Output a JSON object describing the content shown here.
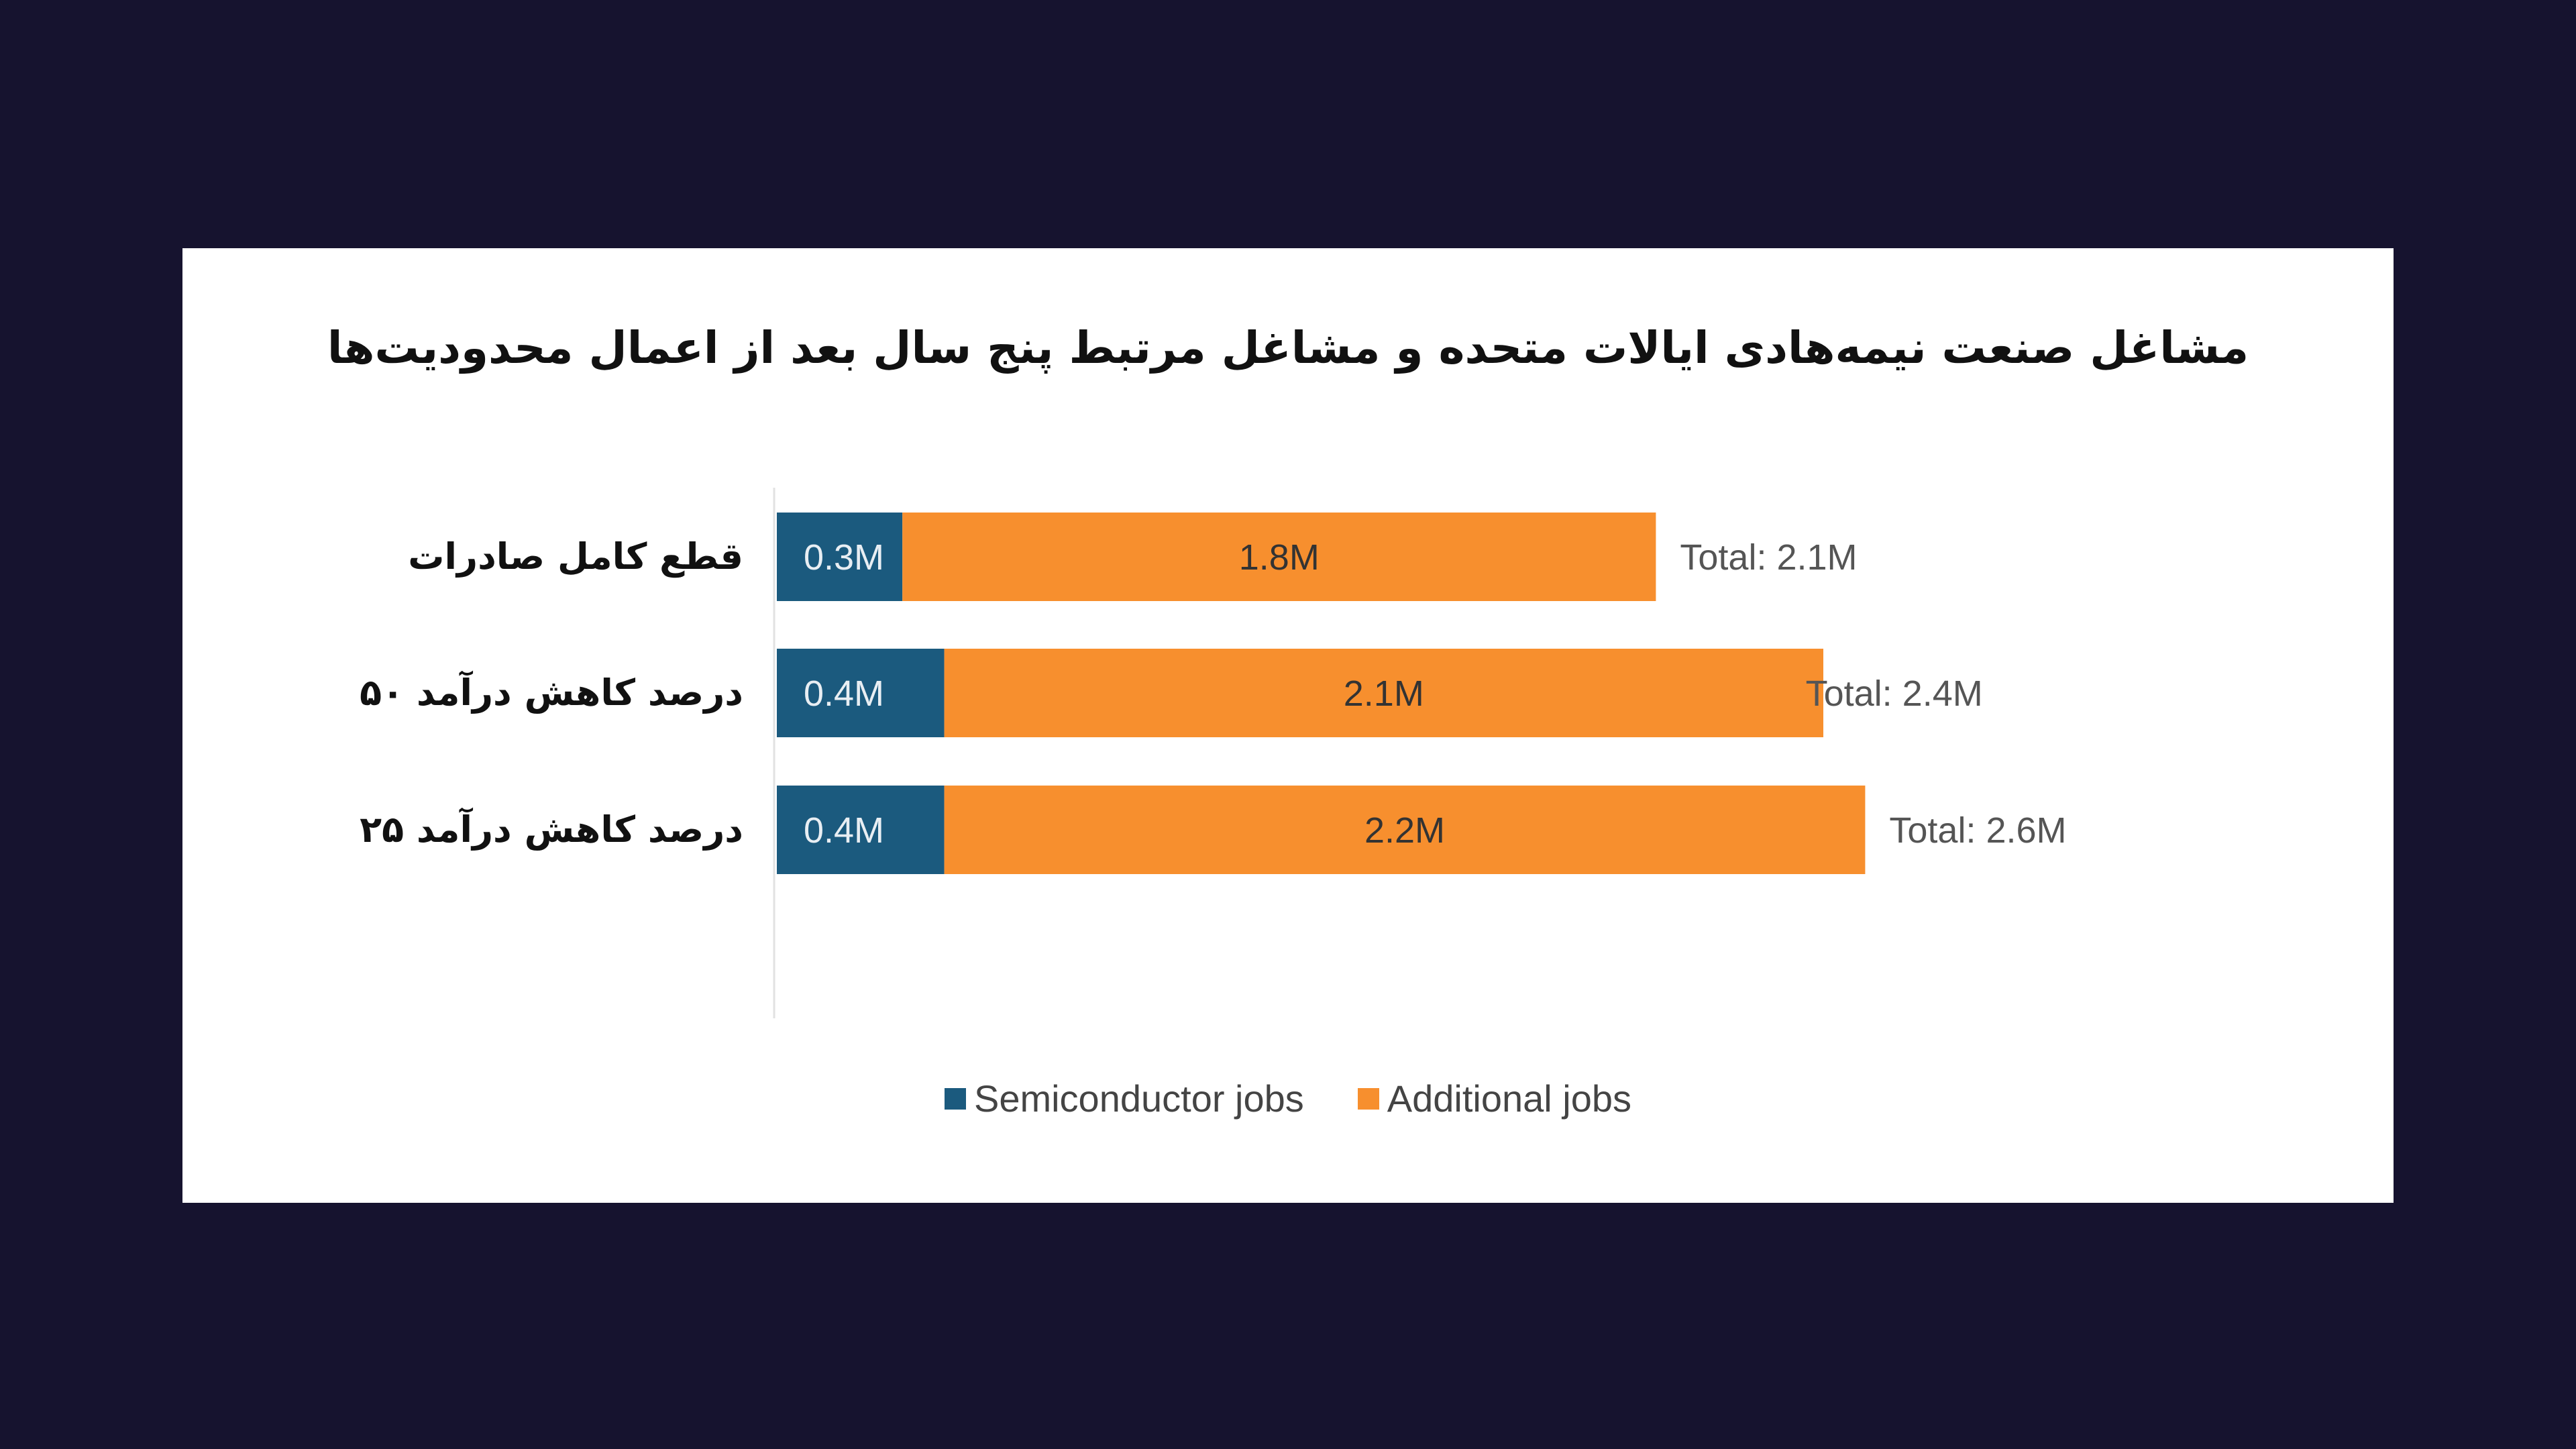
{
  "chart_data": {
    "type": "bar",
    "orientation": "horizontal",
    "stacked": true,
    "title": "مشاغل صنعت نیمه‌هادی ایالات متحده و مشاغل مرتبط پنج سال بعد از اعمال محدودیت‌ها",
    "categories": [
      "قطع کامل صادرات",
      "۵۰ درصد کاهش درآمد",
      "۲۵ درصد کاهش درآمد"
    ],
    "series": [
      {
        "name": "Semiconductor jobs",
        "values": [
          0.3,
          0.4,
          0.4
        ],
        "labels": [
          "0.3M",
          "0.4M",
          "0.4M"
        ],
        "color": "#1b5a7e"
      },
      {
        "name": "Additional jobs",
        "values": [
          1.8,
          2.1,
          2.2
        ],
        "labels": [
          "1.8M",
          "2.1M",
          "2.2M"
        ],
        "color": "#f78f2e"
      }
    ],
    "totals": [
      "Total: 2.1M",
      "Total: 2.4M",
      "Total: 2.6M"
    ],
    "total_values": [
      2.1,
      2.4,
      2.6
    ],
    "unit": "M",
    "grid": false,
    "legend": "bottom"
  },
  "colors": {
    "background": "#16132f",
    "card": "#ffffff"
  }
}
